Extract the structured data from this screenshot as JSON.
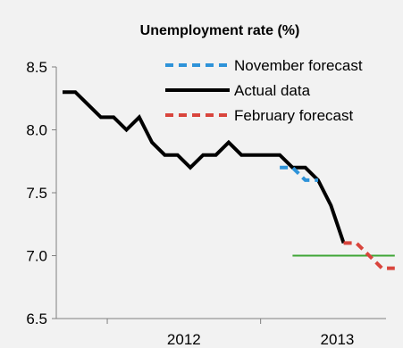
{
  "chart_data": {
    "type": "line",
    "title": "Unemployment rate (%)",
    "xlabel": "",
    "ylabel": "",
    "ylim": [
      6.5,
      8.5
    ],
    "yticks": [
      "8.5",
      "8.0",
      "7.5",
      "7.0",
      "6.5"
    ],
    "xticks": [
      "2012",
      "2013"
    ],
    "grid": false,
    "legend_position": "top-right",
    "x_unit": "month",
    "series": [
      {
        "name": "November forecast",
        "color": "#2e93d9",
        "style": "dashed",
        "points": [
          {
            "x": "2013-02",
            "y": 7.7
          },
          {
            "x": "2013-03",
            "y": 7.7
          },
          {
            "x": "2013-04",
            "y": 7.6
          },
          {
            "x": "2013-05",
            "y": 7.6
          }
        ]
      },
      {
        "name": "Actual data",
        "color": "#000000",
        "style": "solid",
        "points": [
          {
            "x": "2011-09",
            "y": 8.3
          },
          {
            "x": "2011-10",
            "y": 8.3
          },
          {
            "x": "2011-11",
            "y": 8.2
          },
          {
            "x": "2011-12",
            "y": 8.1
          },
          {
            "x": "2012-01",
            "y": 8.1
          },
          {
            "x": "2012-02",
            "y": 8.0
          },
          {
            "x": "2012-03",
            "y": 8.1
          },
          {
            "x": "2012-04",
            "y": 7.9
          },
          {
            "x": "2012-05",
            "y": 7.8
          },
          {
            "x": "2012-06",
            "y": 7.8
          },
          {
            "x": "2012-07",
            "y": 7.7
          },
          {
            "x": "2012-08",
            "y": 7.8
          },
          {
            "x": "2012-09",
            "y": 7.8
          },
          {
            "x": "2012-10",
            "y": 7.9
          },
          {
            "x": "2012-11",
            "y": 7.8
          },
          {
            "x": "2012-12",
            "y": 7.8
          },
          {
            "x": "2013-01",
            "y": 7.8
          },
          {
            "x": "2013-02",
            "y": 7.8
          },
          {
            "x": "2013-03",
            "y": 7.7
          },
          {
            "x": "2013-04",
            "y": 7.7
          },
          {
            "x": "2013-05",
            "y": 7.6
          },
          {
            "x": "2013-06",
            "y": 7.4
          },
          {
            "x": "2013-07",
            "y": 7.1
          }
        ]
      },
      {
        "name": "February forecast",
        "color": "#d9453d",
        "style": "dashed",
        "points": [
          {
            "x": "2013-07",
            "y": 7.1
          },
          {
            "x": "2013-08",
            "y": 7.1
          },
          {
            "x": "2013-09",
            "y": 7.0
          },
          {
            "x": "2013-10",
            "y": 6.9
          },
          {
            "x": "2013-11",
            "y": 6.9
          }
        ]
      }
    ],
    "reference_line": {
      "y": 7.0,
      "x_start": "2013-03",
      "x_end": "2013-11",
      "color": "#3fa535"
    }
  }
}
